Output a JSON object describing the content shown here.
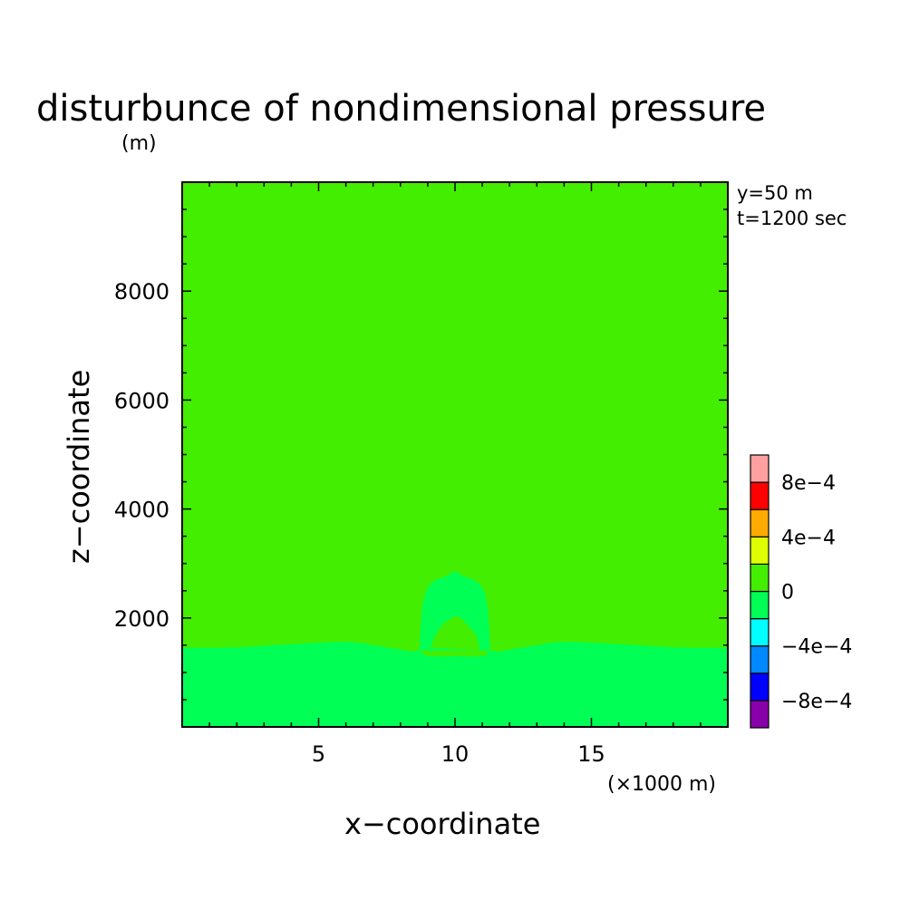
{
  "chart_data": {
    "type": "heatmap",
    "title": "disturbunce of nondimensional pressure",
    "ylabel_units": "(m)",
    "xlabel": "x−coordinate",
    "ylabel": "z−coordinate",
    "xunits": "(×1000 m)",
    "info_y": "y=50 m",
    "info_t": "t=1200 sec",
    "xlim": [
      0,
      20
    ],
    "ylim": [
      0,
      10000
    ],
    "x_ticks": [
      5,
      10,
      15
    ],
    "x_tick_labels": [
      "5",
      "10",
      "15"
    ],
    "y_ticks": [
      2000,
      4000,
      6000,
      8000
    ],
    "y_tick_labels": [
      "2000",
      "4000",
      "6000",
      "8000"
    ],
    "background_level": "0 to 2e-4",
    "lower_layer": {
      "level": "-2e-4 to 0",
      "boundary_x": [
        0,
        2,
        4,
        6,
        7,
        8,
        8.4,
        8.7,
        9,
        10,
        11,
        11.3,
        11.6,
        12,
        13,
        14,
        16,
        18,
        20
      ],
      "boundary_z": [
        1450,
        1460,
        1520,
        1560,
        1500,
        1420,
        1380,
        1400,
        1300,
        1300,
        1300,
        1400,
        1380,
        1420,
        1500,
        1560,
        1520,
        1460,
        1450
      ]
    },
    "dome": {
      "level": "-2e-4 to 0",
      "x": [
        8.7,
        8.8,
        9.0,
        9.3,
        9.6,
        9.8,
        10.0,
        10.2,
        10.4,
        10.7,
        11.0,
        11.2,
        11.3
      ],
      "z": [
        1400,
        2200,
        2550,
        2700,
        2750,
        2800,
        2850,
        2800,
        2750,
        2700,
        2550,
        2200,
        1400
      ]
    },
    "inner_blob": {
      "level": "0 to 2e-4",
      "x": [
        9.1,
        9.3,
        9.6,
        9.9,
        10.0,
        10.2,
        10.5,
        10.8,
        10.9
      ],
      "z": [
        1450,
        1700,
        1900,
        2000,
        2030,
        2000,
        1850,
        1650,
        1400
      ]
    },
    "colorbar": {
      "levels": [
        "-1e-3",
        "-8e-4",
        "-6e-4",
        "-4e-4",
        "-2e-4",
        "0",
        "2e-4",
        "4e-4",
        "6e-4",
        "8e-4",
        "1e-3"
      ],
      "colors": [
        "#8800aa",
        "#0000ff",
        "#0088ff",
        "#00ffff",
        "#00ff55",
        "#44ee00",
        "#ddff00",
        "#ffaa00",
        "#ff0000",
        "#ffa0a0"
      ],
      "tick_labels": [
        "−8e−4",
        "−4e−4",
        "0",
        "4e−4",
        "8e−4"
      ],
      "tick_values": [
        -0.0008,
        -0.0004,
        0,
        0.0004,
        0.0008
      ]
    }
  }
}
